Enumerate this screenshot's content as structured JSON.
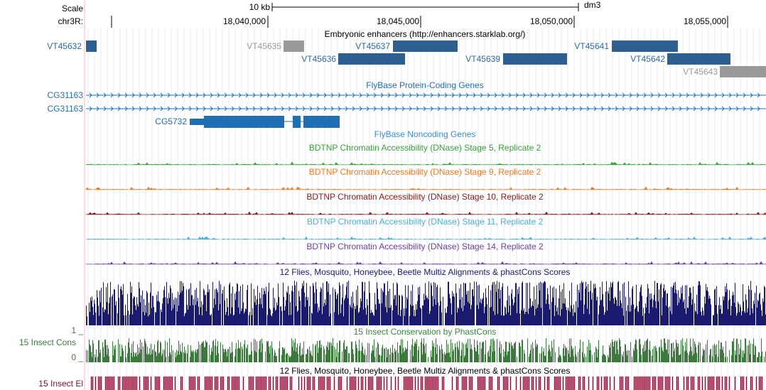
{
  "header": {
    "scale_label": "Scale",
    "scale_size": "10 kb",
    "assembly": "dm3",
    "chrom": "chr3R:",
    "ticks": [
      "18,040,000",
      "18,045,000",
      "18,050,000",
      "18,055,000"
    ]
  },
  "enhancers": {
    "title": "Embryonic enhancers (http://enhancers.starklab.org/)",
    "items": [
      "VT45632",
      "VT45635",
      "VT45637",
      "VT45636",
      "VT45639",
      "VT45641",
      "VT45642",
      "VT45643"
    ]
  },
  "coding_genes": {
    "title": "FlyBase Protein-Coding Genes",
    "genes": [
      "CG31163",
      "CG31163",
      "CG5732"
    ]
  },
  "noncoding_genes": {
    "title": "FlyBase Noncoding Genes"
  },
  "dnase_tracks": [
    "BDTNP Chromatin Accessibility (DNase) Stage 5, Replicate 2",
    "BDTNP Chromatin Accessibility (DNase) Stage 9, Replicate 2",
    "BDTNP Chromatin Accessibility (DNase) Stage 10, Replicate 2",
    "BDTNP Chromatin Accessibility (DNase) Stage 11, Replicate 2",
    "BDTNP Chromatin Accessibility (DNase) Stage 14, Replicate 2"
  ],
  "multiz": {
    "title": "12 Flies, Mosquito, Honeybee, Beetle Multiz Alignments & phastCons Scores"
  },
  "phastcons": {
    "title": "15 Insect Conservation by PhastCons",
    "label": "15 Insect Cons",
    "max_label": "1 _",
    "min_label": "0 _"
  },
  "elements": {
    "title": "12 Flies, Mosquito, Honeybee, Beetle Multiz Alignments & phastCons Scores",
    "label": "15 Insect El"
  }
}
